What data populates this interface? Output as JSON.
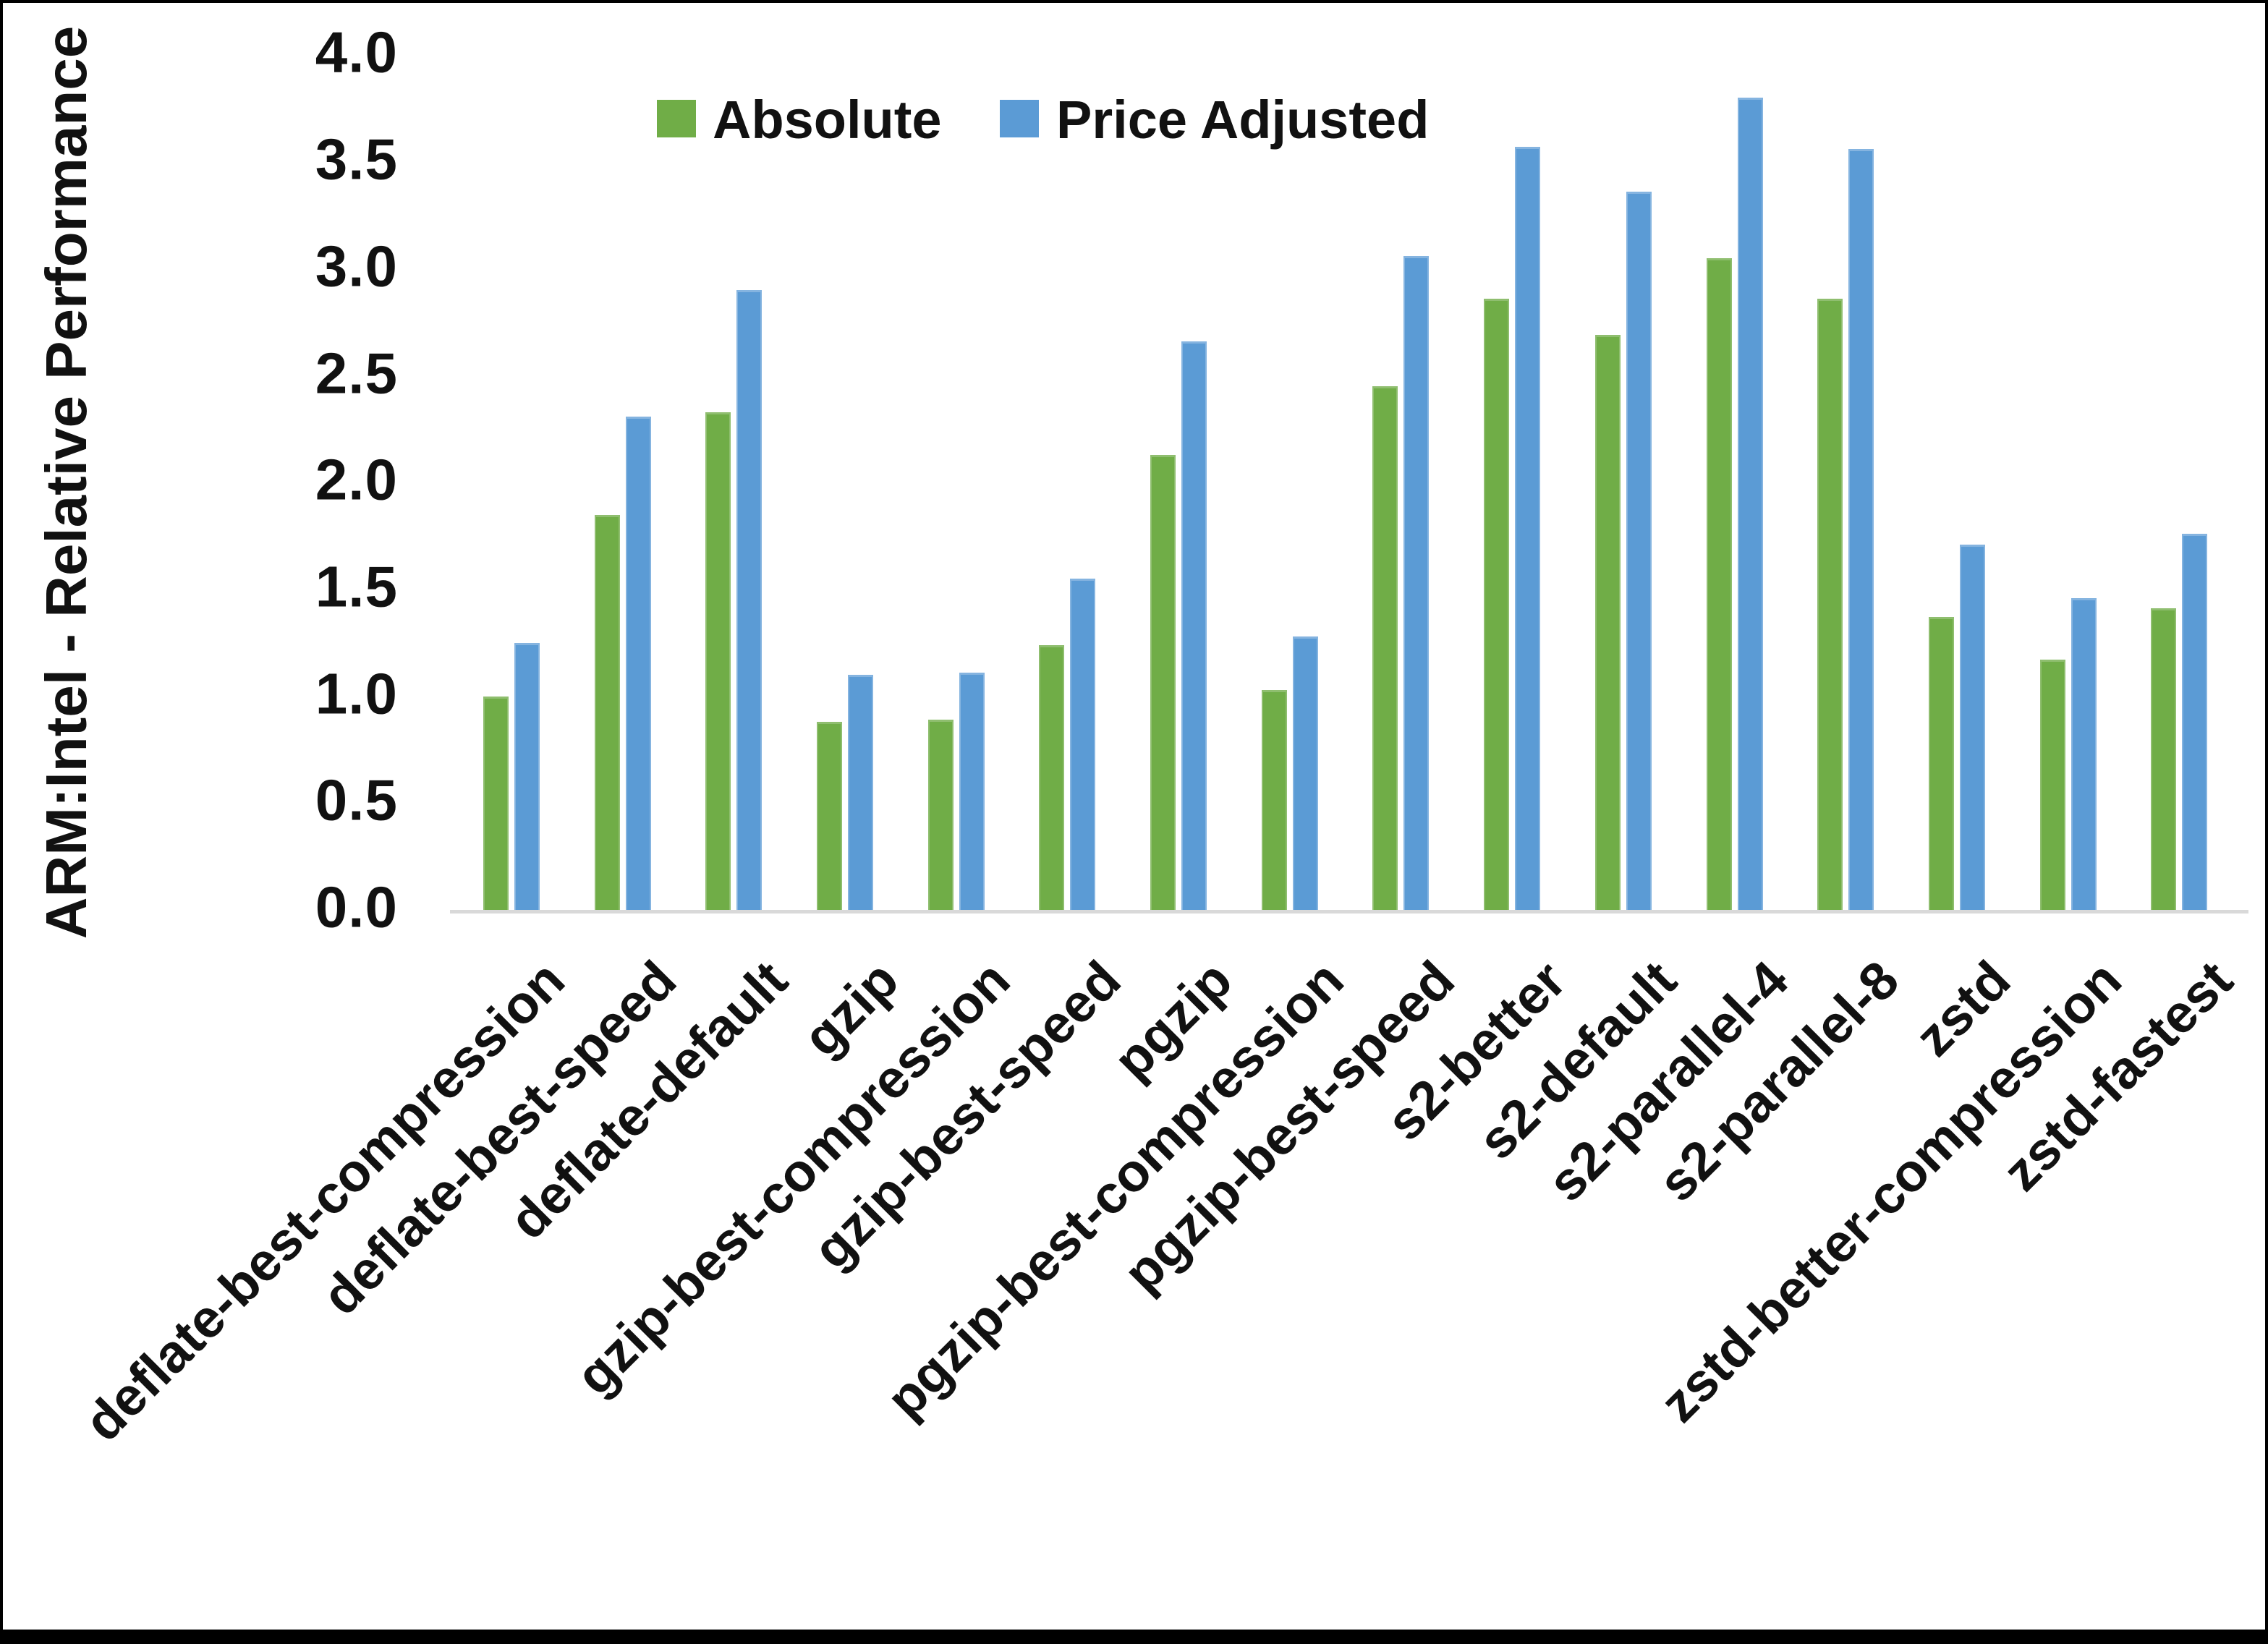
{
  "figure": {
    "background": "#ffffff",
    "frame_color": "#000000"
  },
  "chart_data": {
    "type": "bar",
    "title": "",
    "xlabel": "",
    "ylabel": "ARM:Intel - Relative Performance",
    "ylim": [
      0.0,
      4.0
    ],
    "ytick_step": 0.5,
    "yticks": [
      {
        "value": 0.0,
        "label": "0.0"
      },
      {
        "value": 0.5,
        "label": "0.5"
      },
      {
        "value": 1.0,
        "label": "1.0"
      },
      {
        "value": 1.5,
        "label": "1.5"
      },
      {
        "value": 2.0,
        "label": "2.0"
      },
      {
        "value": 2.5,
        "label": "2.5"
      },
      {
        "value": 3.0,
        "label": "3.0"
      },
      {
        "value": 3.5,
        "label": "3.5"
      },
      {
        "value": 4.0,
        "label": "4.0"
      }
    ],
    "grid": false,
    "axis_line_color": "#d9d9d9",
    "text_color": "#111111",
    "legend_position": "top-center",
    "categories": [
      "deflate-best-compression",
      "deflate-best-speed",
      "deflate-default",
      "gzip",
      "gzip-best-compression",
      "gzip-best-speed",
      "pgzip",
      "pgzip-best-compression",
      "pgzip-best-speed",
      "s2-better",
      "s2-default",
      "s2-parallel-4",
      "s2-parallel-8",
      "zstd",
      "zstd-better-compression",
      "zstd-fastest"
    ],
    "series": [
      {
        "name": "Absolute",
        "color": "#70AD47",
        "edge_color": "#8fbe6f",
        "values": [
          1.0,
          1.85,
          2.33,
          0.88,
          0.89,
          1.24,
          2.13,
          1.03,
          2.45,
          2.86,
          2.69,
          3.05,
          2.86,
          1.37,
          1.17,
          1.41
        ]
      },
      {
        "name": "Price Adjusted",
        "color": "#5B9BD5",
        "edge_color": "#85b4e0",
        "values": [
          1.25,
          2.31,
          2.9,
          1.1,
          1.11,
          1.55,
          2.66,
          1.28,
          3.06,
          3.57,
          3.36,
          3.8,
          3.56,
          1.71,
          1.46,
          1.76
        ]
      }
    ]
  }
}
